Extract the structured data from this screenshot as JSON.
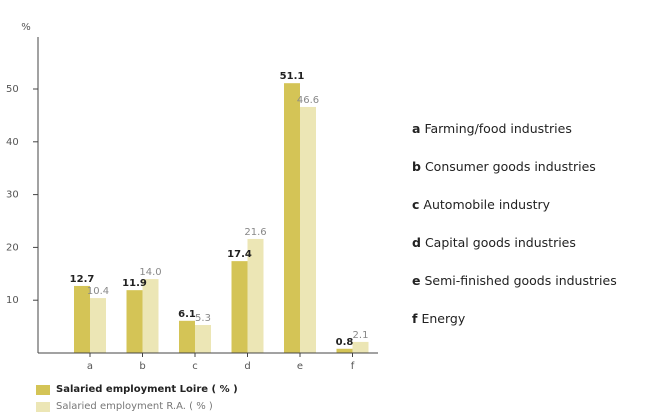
{
  "chart_data": {
    "type": "bar",
    "ylabel": "%",
    "ylim": [
      0,
      60
    ],
    "yticks": [
      10,
      20,
      30,
      40,
      50
    ],
    "categories": [
      "a",
      "b",
      "c",
      "d",
      "e",
      "f"
    ],
    "series": [
      {
        "name": "Salaried employment Loire ( % )",
        "values": [
          12.7,
          11.9,
          6.1,
          17.4,
          51.1,
          0.8
        ],
        "color": "#d4c456"
      },
      {
        "name": "Salaried employment R.A. ( % )",
        "values": [
          10.4,
          14.0,
          5.3,
          21.6,
          46.6,
          2.1
        ],
        "color": "#ece6b5"
      }
    ],
    "value_labels": [
      [
        "12.7",
        "11.9",
        "6.1",
        "17.4",
        "51.1",
        "0.8"
      ],
      [
        "10.4",
        "14.0",
        "5.3",
        "21.6",
        "46.6",
        "2.1"
      ]
    ],
    "category_key": [
      {
        "letter": "a",
        "text": "Farming/food industries"
      },
      {
        "letter": "b",
        "text": "Consumer goods industries"
      },
      {
        "letter": "c",
        "text": "Automobile industry"
      },
      {
        "letter": "d",
        "text": "Capital goods industries"
      },
      {
        "letter": "e",
        "text": "Semi-finished goods industries"
      },
      {
        "letter": "f",
        "text": "Energy"
      }
    ],
    "legend_position": "bottom-left",
    "grid": false
  }
}
